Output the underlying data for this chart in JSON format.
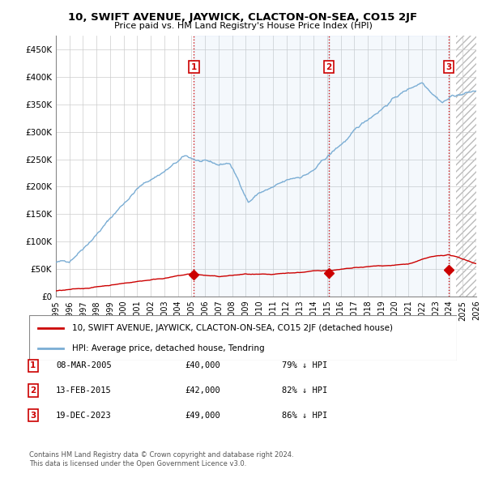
{
  "title": "10, SWIFT AVENUE, JAYWICK, CLACTON-ON-SEA, CO15 2JF",
  "subtitle": "Price paid vs. HM Land Registry's House Price Index (HPI)",
  "hpi_color": "#7aadd4",
  "price_color": "#cc0000",
  "marker_color": "#cc0000",
  "sale_dates": [
    2005.18,
    2015.12,
    2023.97
  ],
  "sale_prices": [
    40000,
    42000,
    49000
  ],
  "sale_labels": [
    "1",
    "2",
    "3"
  ],
  "sale_info": [
    {
      "label": "1",
      "date": "08-MAR-2005",
      "price": "£40,000",
      "pct": "79% ↓ HPI"
    },
    {
      "label": "2",
      "date": "13-FEB-2015",
      "price": "£42,000",
      "pct": "82% ↓ HPI"
    },
    {
      "label": "3",
      "date": "19-DEC-2023",
      "price": "£49,000",
      "pct": "86% ↓ HPI"
    }
  ],
  "legend_line1": "10, SWIFT AVENUE, JAYWICK, CLACTON-ON-SEA, CO15 2JF (detached house)",
  "legend_line2": "HPI: Average price, detached house, Tendring",
  "footnote1": "Contains HM Land Registry data © Crown copyright and database right 2024.",
  "footnote2": "This data is licensed under the Open Government Licence v3.0.",
  "xlim": [
    1995,
    2026
  ],
  "ylim": [
    0,
    475000
  ],
  "yticks": [
    0,
    50000,
    100000,
    150000,
    200000,
    250000,
    300000,
    350000,
    400000,
    450000
  ],
  "ytick_labels": [
    "£0",
    "£50K",
    "£100K",
    "£150K",
    "£200K",
    "£250K",
    "£300K",
    "£350K",
    "£400K",
    "£450K"
  ],
  "xticks": [
    1995,
    1996,
    1997,
    1998,
    1999,
    2000,
    2001,
    2002,
    2003,
    2004,
    2005,
    2006,
    2007,
    2008,
    2009,
    2010,
    2011,
    2012,
    2013,
    2014,
    2015,
    2016,
    2017,
    2018,
    2019,
    2020,
    2021,
    2022,
    2023,
    2024,
    2025,
    2026
  ],
  "grid_color": "#cccccc",
  "shade_between_1_2": [
    2005.18,
    2015.12
  ],
  "shade_between_2_3": [
    2015.12,
    2023.97
  ],
  "hatch_start": 2024.5,
  "hatch_end": 2026
}
